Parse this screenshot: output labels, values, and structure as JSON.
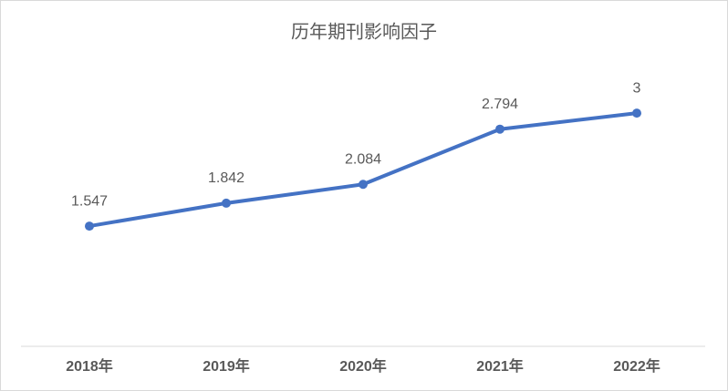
{
  "chart_data": {
    "type": "line",
    "title": "历年期刊影响因子",
    "categories": [
      "2018年",
      "2019年",
      "2020年",
      "2021年",
      "2022年"
    ],
    "values": [
      1.547,
      1.842,
      2.084,
      2.794,
      3
    ],
    "color": "#4472c4",
    "ylim": [
      0,
      3.5
    ]
  }
}
